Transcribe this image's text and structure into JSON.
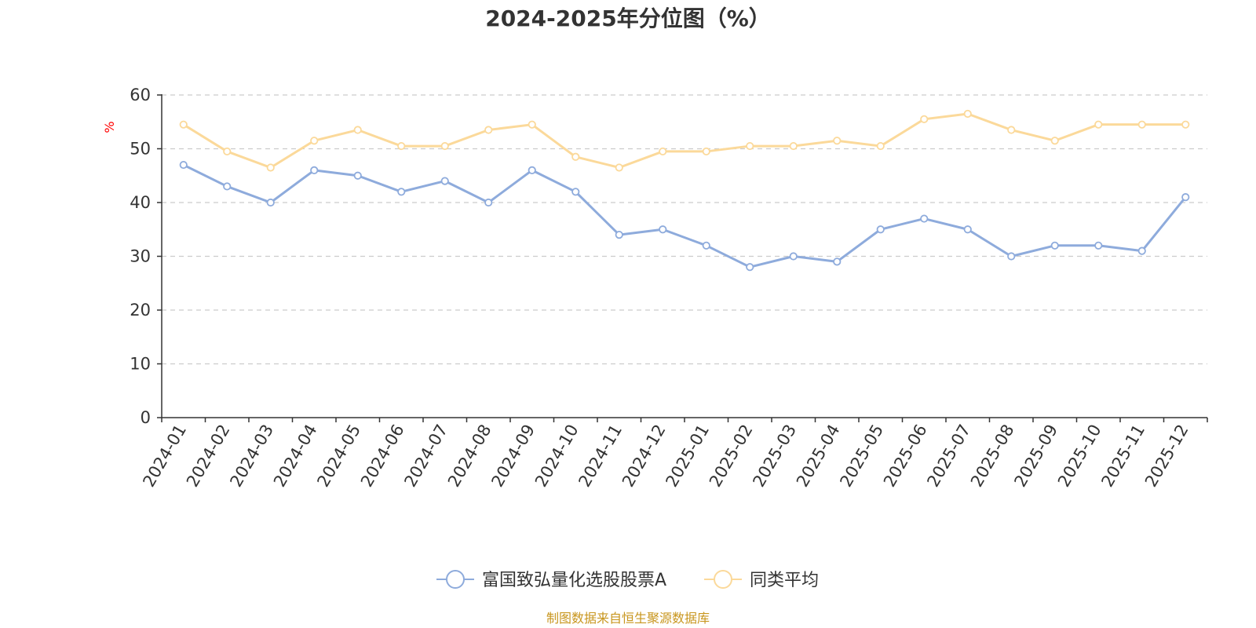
{
  "chart_data": {
    "type": "line",
    "title": "2024-2025年分位图（%）",
    "ylabel": "%",
    "xlabel": "",
    "ylim": [
      0,
      60
    ],
    "yticks": [
      0,
      10,
      20,
      30,
      40,
      50,
      60
    ],
    "grid": true,
    "legend_position": "bottom-center",
    "categories": [
      "2024-01",
      "2024-02",
      "2024-03",
      "2024-04",
      "2024-05",
      "2024-06",
      "2024-07",
      "2024-08",
      "2024-09",
      "2024-10",
      "2024-11",
      "2024-12",
      "2025-01",
      "2025-02",
      "2025-03",
      "2025-04",
      "2025-05",
      "2025-06",
      "2025-07",
      "2025-08",
      "2025-09",
      "2025-10",
      "2025-11",
      "2025-12"
    ],
    "series": [
      {
        "name": "富国致弘量化选股股票A",
        "color": "#8eabdc",
        "values": [
          47,
          43,
          40,
          46,
          45,
          42,
          44,
          40,
          46,
          42,
          34,
          35,
          32,
          28,
          30,
          29,
          35,
          37,
          35,
          30,
          32,
          32,
          31,
          41
        ]
      },
      {
        "name": "同类平均",
        "color": "#fbd99a",
        "values": [
          54.5,
          49.5,
          46.5,
          51.5,
          53.5,
          50.5,
          50.5,
          53.5,
          54.5,
          48.5,
          46.5,
          49.5,
          49.5,
          50.5,
          50.5,
          51.5,
          50.5,
          55.5,
          56.5,
          53.5,
          51.5,
          54.5,
          54.5,
          54.5
        ]
      }
    ]
  },
  "source_text": "制图数据来自恒生聚源数据库",
  "colors": {
    "axis": "#333333",
    "grid": "#cccccc",
    "unit": "#ff0000",
    "source": "#c8961e"
  }
}
